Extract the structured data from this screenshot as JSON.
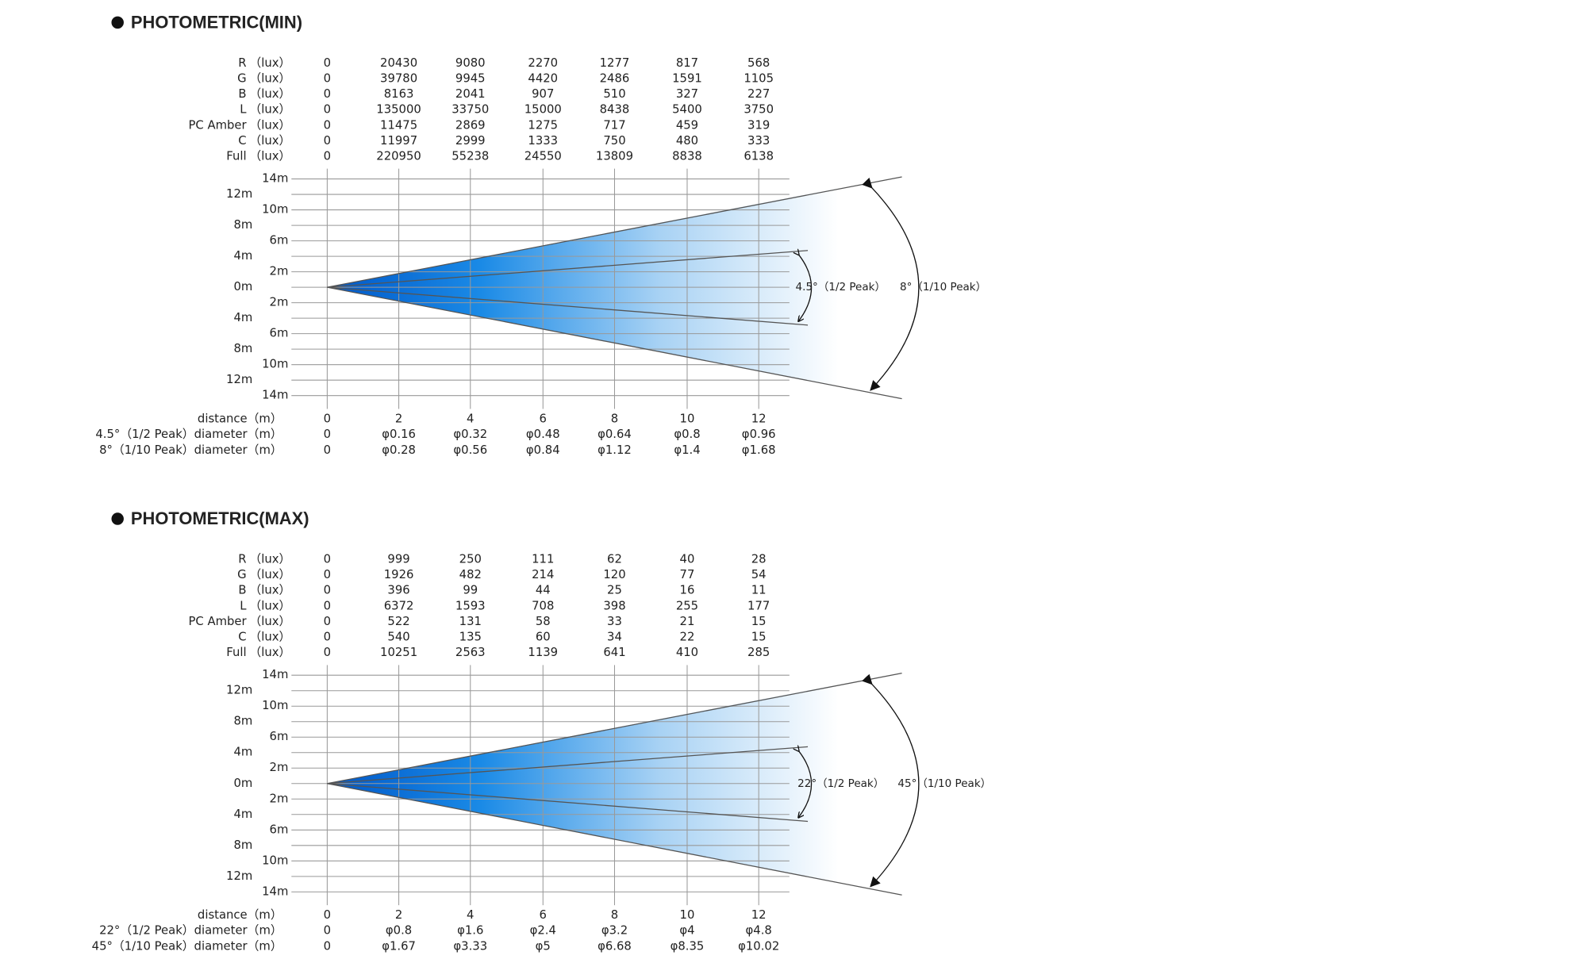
{
  "sections": [
    {
      "title": "PHOTOMETRIC(MIN)",
      "lux_rows": [
        {
          "label": "R",
          "unit": "（lux）",
          "values": [
            0,
            20430,
            9080,
            2270,
            1277,
            817,
            568
          ]
        },
        {
          "label": "G",
          "unit": "（lux）",
          "values": [
            0,
            39780,
            9945,
            4420,
            2486,
            1591,
            1105
          ]
        },
        {
          "label": "B",
          "unit": "（lux）",
          "values": [
            0,
            8163,
            2041,
            907,
            510,
            327,
            227
          ]
        },
        {
          "label": "L",
          "unit": "（lux）",
          "values": [
            0,
            135000,
            33750,
            15000,
            8438,
            5400,
            3750
          ]
        },
        {
          "label": "PC Amber",
          "unit": "（lux）",
          "values": [
            0,
            11475,
            2869,
            1275,
            717,
            459,
            319
          ]
        },
        {
          "label": "C",
          "unit": "（lux）",
          "values": [
            0,
            11997,
            2999,
            1333,
            750,
            480,
            333
          ]
        },
        {
          "label": "Full",
          "unit": "（lux）",
          "values": [
            0,
            220950,
            55238,
            24550,
            13809,
            8838,
            6138
          ]
        }
      ],
      "y_labels": [
        "14m",
        "12m",
        "10m",
        "8m",
        "6m",
        "4m",
        "2m",
        "0m",
        "2m",
        "4m",
        "6m",
        "8m",
        "10m",
        "12m",
        "14m"
      ],
      "distance_rows": [
        {
          "label": "distance（m）",
          "values": [
            0,
            2,
            4,
            6,
            8,
            10,
            12
          ]
        },
        {
          "label": "4.5°（1/2 Peak）diameter（m）",
          "values": [
            0,
            "φ0.16",
            "φ0.32",
            "φ0.48",
            "φ0.64",
            "φ0.8",
            "φ0.96"
          ]
        },
        {
          "label": "8°（1/10 Peak）diameter（m）",
          "values": [
            0,
            "φ0.28",
            "φ0.56",
            "φ0.84",
            "φ1.12",
            "φ1.4",
            "φ1.68"
          ]
        }
      ],
      "half_peak_label": "4.5°（1/2 Peak）",
      "tenth_peak_label": "8°（1/10 Peak）"
    },
    {
      "title": "PHOTOMETRIC(MAX)",
      "lux_rows": [
        {
          "label": "R",
          "unit": "（lux）",
          "values": [
            0,
            999,
            250,
            111,
            62,
            40,
            28
          ]
        },
        {
          "label": "G",
          "unit": "（lux）",
          "values": [
            0,
            1926,
            482,
            214,
            120,
            77,
            54
          ]
        },
        {
          "label": "B",
          "unit": "（lux）",
          "values": [
            0,
            396,
            99,
            44,
            25,
            16,
            11
          ]
        },
        {
          "label": "L",
          "unit": "（lux）",
          "values": [
            0,
            6372,
            1593,
            708,
            398,
            255,
            177
          ]
        },
        {
          "label": "PC Amber",
          "unit": "（lux）",
          "values": [
            0,
            522,
            131,
            58,
            33,
            21,
            15
          ]
        },
        {
          "label": "C",
          "unit": "（lux）",
          "values": [
            0,
            540,
            135,
            60,
            34,
            22,
            15
          ]
        },
        {
          "label": "Full",
          "unit": "（lux）",
          "values": [
            0,
            10251,
            2563,
            1139,
            641,
            410,
            285
          ]
        }
      ],
      "y_labels": [
        "14m",
        "12m",
        "10m",
        "8m",
        "6m",
        "4m",
        "2m",
        "0m",
        "2m",
        "4m",
        "6m",
        "8m",
        "10m",
        "12m",
        "14m"
      ],
      "distance_rows": [
        {
          "label": "distance（m）",
          "values": [
            0,
            2,
            4,
            6,
            8,
            10,
            12
          ]
        },
        {
          "label": "22°（1/2 Peak）diameter（m）",
          "values": [
            0,
            "φ0.8",
            "φ1.6",
            "φ2.4",
            "φ3.2",
            "φ4",
            "φ4.8"
          ]
        },
        {
          "label": "45°（1/10 Peak）diameter（m）",
          "values": [
            0,
            "φ1.67",
            "φ3.33",
            "φ5",
            "φ6.68",
            "φ8.35",
            "φ10.02"
          ]
        }
      ],
      "half_peak_label": "22°（1/2 Peak）",
      "tenth_peak_label": "45°（1/10 Peak）"
    }
  ]
}
